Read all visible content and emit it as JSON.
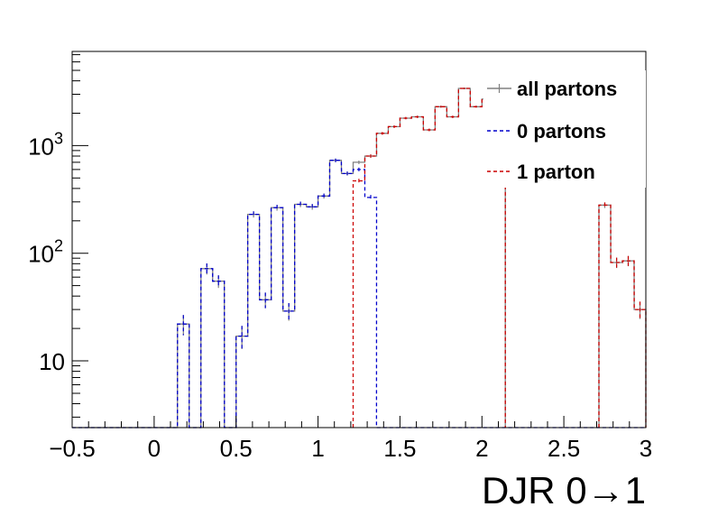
{
  "chart_data": {
    "type": "histogram",
    "xlabel": "DJR 0→1",
    "ylabel": "",
    "xlim": [
      -0.5,
      3.0
    ],
    "ylim": [
      2.4,
      7500
    ],
    "yscale": "log",
    "grid": false,
    "legend_position": "top-right",
    "bin_width": 0.0714,
    "x_ticks": [
      {
        "value": -0.5,
        "label": "−0.5"
      },
      {
        "value": 0,
        "label": "0"
      },
      {
        "value": 0.5,
        "label": "0.5"
      },
      {
        "value": 1,
        "label": "1"
      },
      {
        "value": 1.5,
        "label": "1.5"
      },
      {
        "value": 2,
        "label": "2"
      },
      {
        "value": 2.5,
        "label": "2.5"
      },
      {
        "value": 3,
        "label": "3"
      }
    ],
    "y_ticks": [
      {
        "value": 10,
        "label": "10"
      },
      {
        "value": 100,
        "label": "10",
        "sup": "2"
      },
      {
        "value": 1000,
        "label": "10",
        "sup": "3"
      }
    ],
    "series": [
      {
        "name": "all partons",
        "color": "#808080",
        "style": "solid",
        "bins": [
          [
            -0.5,
            2.4
          ],
          [
            -0.429,
            2.4
          ],
          [
            -0.357,
            2.4
          ],
          [
            -0.286,
            2.4
          ],
          [
            -0.214,
            2.4
          ],
          [
            -0.143,
            2.4
          ],
          [
            -0.071,
            2.4
          ],
          [
            0.0,
            2.4
          ],
          [
            0.071,
            2.4
          ],
          [
            0.143,
            22
          ],
          [
            0.214,
            2.4
          ],
          [
            0.286,
            72
          ],
          [
            0.357,
            55
          ],
          [
            0.429,
            2.4
          ],
          [
            0.5,
            17
          ],
          [
            0.571,
            230
          ],
          [
            0.643,
            37
          ],
          [
            0.714,
            265
          ],
          [
            0.786,
            29
          ],
          [
            0.857,
            285
          ],
          [
            0.929,
            270
          ],
          [
            1.0,
            340
          ],
          [
            1.071,
            730
          ],
          [
            1.143,
            550
          ],
          [
            1.214,
            700
          ],
          [
            1.286,
            800
          ],
          [
            1.357,
            1300
          ],
          [
            1.429,
            1500
          ],
          [
            1.5,
            1800
          ],
          [
            1.571,
            1850
          ],
          [
            1.643,
            1400
          ],
          [
            1.714,
            2300
          ],
          [
            1.786,
            1850
          ],
          [
            1.857,
            3400
          ],
          [
            1.929,
            2300
          ],
          [
            2.0,
            2700
          ],
          [
            2.071,
            2100
          ],
          [
            2.714,
            280
          ],
          [
            2.786,
            82
          ],
          [
            2.857,
            85
          ],
          [
            2.929,
            30
          ]
        ]
      },
      {
        "name": "0 partons",
        "color": "#0000cc",
        "style": "dashed",
        "bins": [
          [
            -0.5,
            2.4
          ],
          [
            -0.429,
            2.4
          ],
          [
            -0.357,
            2.4
          ],
          [
            -0.286,
            2.4
          ],
          [
            -0.214,
            2.4
          ],
          [
            -0.143,
            2.4
          ],
          [
            -0.071,
            2.4
          ],
          [
            0.0,
            2.4
          ],
          [
            0.071,
            2.4
          ],
          [
            0.143,
            22
          ],
          [
            0.214,
            2.4
          ],
          [
            0.286,
            72
          ],
          [
            0.357,
            55
          ],
          [
            0.429,
            2.4
          ],
          [
            0.5,
            17
          ],
          [
            0.571,
            230
          ],
          [
            0.643,
            37
          ],
          [
            0.714,
            265
          ],
          [
            0.786,
            29
          ],
          [
            0.857,
            285
          ],
          [
            0.929,
            270
          ],
          [
            1.0,
            340
          ],
          [
            1.071,
            730
          ],
          [
            1.143,
            550
          ],
          [
            1.214,
            600
          ],
          [
            1.286,
            330
          ],
          [
            1.357,
            2.4
          ],
          [
            1.429,
            2.4
          ],
          [
            1.5,
            2.4
          ],
          [
            1.571,
            2.4
          ],
          [
            1.643,
            2.4
          ],
          [
            1.714,
            2.4
          ],
          [
            1.786,
            2.4
          ],
          [
            1.857,
            2.4
          ],
          [
            1.929,
            2.4
          ],
          [
            2.0,
            2.4
          ],
          [
            2.071,
            2.4
          ],
          [
            2.143,
            2.4
          ],
          [
            2.214,
            2.4
          ],
          [
            2.286,
            2.4
          ],
          [
            2.357,
            2.4
          ],
          [
            2.429,
            2.4
          ],
          [
            2.5,
            2.4
          ],
          [
            2.571,
            2.4
          ],
          [
            2.643,
            2.4
          ],
          [
            2.714,
            2.4
          ],
          [
            2.786,
            2.4
          ],
          [
            2.857,
            2.4
          ],
          [
            2.929,
            2.4
          ]
        ]
      },
      {
        "name": "1 parton",
        "color": "#cc0000",
        "style": "dashed",
        "bins": [
          [
            1.214,
            470
          ],
          [
            1.286,
            800
          ],
          [
            1.357,
            1300
          ],
          [
            1.429,
            1500
          ],
          [
            1.5,
            1800
          ],
          [
            1.571,
            1850
          ],
          [
            1.643,
            1400
          ],
          [
            1.714,
            2300
          ],
          [
            1.786,
            1850
          ],
          [
            1.857,
            3400
          ],
          [
            1.929,
            2300
          ],
          [
            2.0,
            2700
          ],
          [
            2.071,
            2100
          ],
          [
            2.714,
            280
          ],
          [
            2.786,
            82
          ],
          [
            2.857,
            85
          ],
          [
            2.929,
            30
          ]
        ]
      }
    ]
  }
}
